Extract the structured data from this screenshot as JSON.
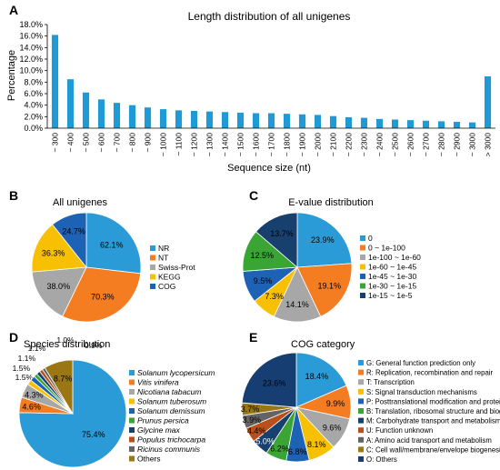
{
  "panels": {
    "A": "A",
    "B": "B",
    "C": "C",
    "D": "D",
    "E": "E"
  },
  "chart_data": [
    {
      "id": "A",
      "type": "bar",
      "title": "Length distribution of all unigenes",
      "xlabel": "Sequence size (nt)",
      "ylabel": "Percentage",
      "ylim": [
        0,
        18
      ],
      "yticks": [
        "0.0%",
        "2.0%",
        "4.0%",
        "6.0%",
        "8.0%",
        "10.0%",
        "12.0%",
        "14.0%",
        "16.0%",
        "18.0%"
      ],
      "grid": false,
      "color": "#1e9bd7",
      "categories": [
        "~ 300",
        "~ 400",
        "~ 500",
        "~ 600",
        "~ 700",
        "~ 800",
        "~ 900",
        "~ 1000",
        "~ 1100",
        "~ 1200",
        "~ 1300",
        "~ 1400",
        "~ 1500",
        "~ 1600",
        "~ 1700",
        "~ 1800",
        "~ 1900",
        "~ 2000",
        "~ 2100",
        "~ 2200",
        "~ 2300",
        "~ 2400",
        "~ 2500",
        "~ 2600",
        "~ 2700",
        "~ 2800",
        "~ 2900",
        "~ 3000",
        "> 3000"
      ],
      "values": [
        16.2,
        8.5,
        6.2,
        5.0,
        4.4,
        4.0,
        3.6,
        3.3,
        3.1,
        3.0,
        2.9,
        2.8,
        2.7,
        2.6,
        2.6,
        2.5,
        2.4,
        2.3,
        2.1,
        1.9,
        1.8,
        1.6,
        1.5,
        1.4,
        1.3,
        1.2,
        1.1,
        1.0,
        9.0
      ]
    },
    {
      "id": "B",
      "type": "pie",
      "title": "All unigenes",
      "slices": [
        {
          "label": "NR",
          "value": 62.1,
          "text": "62.1%",
          "color": "#2b9bd8"
        },
        {
          "label": "NT",
          "value": 70.3,
          "text": "70.3%",
          "color": "#f47c21"
        },
        {
          "label": "Swiss-Prot",
          "value": 38.0,
          "text": "38.0%",
          "color": "#a7a7a7"
        },
        {
          "label": "KEGG",
          "value": 36.3,
          "text": "36.3%",
          "color": "#f8c003"
        },
        {
          "label": "COG",
          "value": 24.7,
          "text": "24.7%",
          "color": "#1d62b5"
        }
      ]
    },
    {
      "id": "C",
      "type": "pie",
      "title": "E-value distribution",
      "slices": [
        {
          "label": "0",
          "value": 23.9,
          "text": "23.9%",
          "color": "#2b9bd8"
        },
        {
          "label": "0 ~ 1e-100",
          "value": 19.1,
          "text": "19.1%",
          "color": "#f47c21"
        },
        {
          "label": "1e-100 ~ 1e-60",
          "value": 14.1,
          "text": "14.1%",
          "color": "#a7a7a7"
        },
        {
          "label": "1e-60 ~ 1e-45",
          "value": 7.3,
          "text": "7.3%",
          "color": "#f8c003"
        },
        {
          "label": "1e-45 ~ 1e-30",
          "value": 9.5,
          "text": "9.5%",
          "color": "#1d62b5"
        },
        {
          "label": "1e-30 ~ 1e-15",
          "value": 12.5,
          "text": "12.5%",
          "color": "#3aa534"
        },
        {
          "label": "1e-15 ~ 1e-5",
          "value": 13.7,
          "text": "13.7%",
          "color": "#17406f"
        }
      ]
    },
    {
      "id": "D",
      "type": "pie",
      "title": "Species distribution",
      "slices": [
        {
          "label": "Solanum lycopersicum",
          "value": 75.4,
          "text": "75.4%",
          "color": "#2b9bd8"
        },
        {
          "label": "Vitis vinifera",
          "value": 4.6,
          "text": "4.6%",
          "color": "#f47c21"
        },
        {
          "label": "Nicotiana tabacum",
          "value": 4.3,
          "text": "4.3%",
          "color": "#a7a7a7"
        },
        {
          "label": "Solanum tuberosum",
          "value": 1.5,
          "text": "1.5%",
          "color": "#f8c003"
        },
        {
          "label": "Solanum demissum",
          "value": 1.5,
          "text": "1.5%",
          "color": "#1d62b5"
        },
        {
          "label": "Prunus persica",
          "value": 1.1,
          "text": "1.1%",
          "color": "#3aa534"
        },
        {
          "label": "Glycine max",
          "value": 1.1,
          "text": "1.1%",
          "color": "#17406f"
        },
        {
          "label": "Populus trichocarpa",
          "value": 1.0,
          "text": "1.0%",
          "color": "#b94f1a"
        },
        {
          "label": "Ricinus communis",
          "value": 0.9,
          "text": "0.9%",
          "color": "#646464"
        },
        {
          "label": "Others",
          "value": 8.7,
          "text": "8.7%",
          "color": "#9b7714"
        }
      ]
    },
    {
      "id": "E",
      "type": "pie",
      "title": "COG category",
      "slices": [
        {
          "label": "G: General function prediction only",
          "value": 18.4,
          "text": "18.4%",
          "color": "#2b9bd8"
        },
        {
          "label": "R: Replication, recombination and repair",
          "value": 9.9,
          "text": "9.9%",
          "color": "#f47c21"
        },
        {
          "label": "T: Transcription",
          "value": 9.6,
          "text": "9.6%",
          "color": "#a7a7a7"
        },
        {
          "label": "S: Signal transduction mechanisms",
          "value": 8.1,
          "text": "8.1%",
          "color": "#f8c003"
        },
        {
          "label": "P: Posttranslational modification and protein turnover",
          "value": 6.8,
          "text": "6.8%",
          "color": "#1d62b5"
        },
        {
          "label": "B: Translation, ribosomal structure and biogenesis",
          "value": 6.2,
          "text": "6.2%",
          "color": "#3aa534"
        },
        {
          "label": "M: Carbohydrate transport and metabolism",
          "value": 5.0,
          "text": "5.0%",
          "color": "#17406f"
        },
        {
          "label": "U: Function unknown",
          "value": 4.4,
          "text": "4.4%",
          "color": "#b94f1a"
        },
        {
          "label": "A: Amino acid transport and metabolism",
          "value": 3.9,
          "text": "3.9%",
          "color": "#646464"
        },
        {
          "label": "C: Cell wall/membrane/envelope biogenesis",
          "value": 3.7,
          "text": "3.7%",
          "color": "#9b7714"
        },
        {
          "label": "O: Others",
          "value": 23.6,
          "text": "23.6%",
          "color": "#173e73"
        }
      ]
    }
  ]
}
